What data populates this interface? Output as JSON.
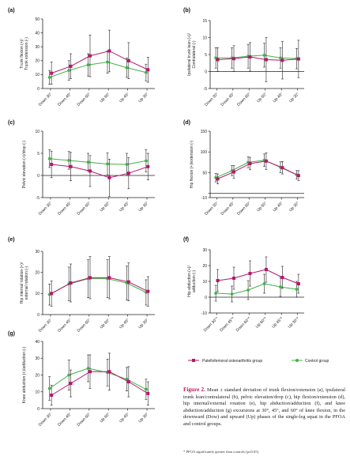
{
  "figure": {
    "caption_label": "Figure 2.",
    "caption_text": "Mean ± standard deviation of trunk flexion/extension (a), ipsilateral trunk lean/contralateral (b), pelvic elevation/drop (c), hip flexion/extension (d), hip internal/external rotation (e), hip abduction/adduction (f), and knee abduction/adduction (g) excursions at 30°, 45°, and 60° of knee flexion, in the downward (Dow) and upward (Up) phases of the single-leg squat in the PFOA and control groups.",
    "footnote": "* PFOA significantly greater than controls (p≤0.05)."
  },
  "legend": {
    "pfoa_label": "Patellofemoral osteoarthritis group",
    "control_label": "Control group",
    "pfoa_color": "#b5176b",
    "control_color": "#43b04a"
  },
  "chart_data": [
    {
      "panel": "(a)",
      "type": "line",
      "ylabel": "Trunk flexion (+)/\nTrunk extension (-)",
      "ylim": [
        0,
        50
      ],
      "yticks": [
        0,
        10,
        20,
        30,
        40,
        50
      ],
      "categories": [
        "Down 30°",
        "Down 45°",
        "Down 60°",
        "Up 60°",
        "Up 45°",
        "Up 30°"
      ],
      "series": [
        {
          "name": "Patellofemoral osteoarthritis group",
          "values": [
            11,
            16,
            23.5,
            27,
            20,
            13.5
          ],
          "err": [
            8,
            9,
            15,
            15,
            13,
            9
          ]
        },
        {
          "name": "Control group",
          "values": [
            8,
            13,
            17,
            19,
            15,
            11.5
          ],
          "err": [
            5,
            7,
            8,
            8,
            7,
            6
          ]
        }
      ]
    },
    {
      "panel": "(b)",
      "type": "line",
      "ylabel": "Ipsilateral trunk lean (+)/\nContralateral (-)",
      "ylim": [
        -5,
        15
      ],
      "yticks": [
        -5,
        0,
        5,
        10,
        15
      ],
      "categories": [
        "Down 30°",
        "Down 45°",
        "Down 60°",
        "Up 60°",
        "Up 45°",
        "Up 30°"
      ],
      "series": [
        {
          "name": "Patellofemoral osteoarthritis group",
          "values": [
            3.5,
            3.8,
            4.3,
            3.5,
            3.3,
            3.7
          ],
          "err": [
            3.5,
            3.8,
            4.2,
            6.5,
            5.5,
            5.5
          ]
        },
        {
          "name": "Control group",
          "values": [
            4,
            4,
            4.5,
            4.8,
            4,
            3.8
          ],
          "err": [
            3,
            3,
            3.5,
            3.5,
            3,
            3
          ]
        }
      ]
    },
    {
      "panel": "(c)",
      "type": "line",
      "ylabel": "Pelvic elevation (+)/drop (-)",
      "ylim": [
        -5,
        10
      ],
      "yticks": [
        -5,
        0,
        5,
        10
      ],
      "categories": [
        "Down 30°",
        "Down 45°",
        "Down 60°",
        "Up 60°",
        "Up 45°",
        "Up 30°"
      ],
      "series": [
        {
          "name": "Patellofemoral osteoarthritis group",
          "values": [
            2.5,
            2,
            1,
            -0.5,
            0.5,
            2
          ],
          "err": [
            3,
            3.2,
            3.5,
            4.2,
            3.5,
            3
          ]
        },
        {
          "name": "Control group",
          "values": [
            3.8,
            3.4,
            3,
            2.6,
            2.5,
            3.3
          ],
          "err": [
            2,
            2,
            2,
            2.5,
            2.5,
            2.5
          ]
        }
      ]
    },
    {
      "panel": "(d)",
      "type": "line",
      "ylabel": "Hip flexion (+)/extension (-)",
      "ylim": [
        -10,
        150
      ],
      "yticks": [
        -10,
        0,
        50,
        100,
        150
      ],
      "yticklabels": [
        "-10",
        "",
        "50",
        "100",
        "150"
      ],
      "categories": [
        "Down 30°",
        "Down 45°",
        "Down 60°",
        "Up 60°",
        "Up 45°",
        "Up 30°"
      ],
      "series": [
        {
          "name": "Patellofemoral osteoarthritis group",
          "values": [
            35,
            52,
            72,
            78,
            62,
            43
          ],
          "err": [
            12,
            15,
            15,
            20,
            15,
            12
          ]
        },
        {
          "name": "Control group",
          "values": [
            38,
            55,
            75,
            80,
            63,
            45
          ],
          "err": [
            10,
            12,
            13,
            15,
            13,
            10
          ]
        }
      ]
    },
    {
      "panel": "(e)",
      "type": "line",
      "ylabel": "Hip internal rotation (+)/\nexternal rotation (-)",
      "ylim": [
        0,
        30
      ],
      "yticks": [
        0,
        10,
        20,
        30
      ],
      "categories": [
        "Down 30°",
        "Down 45°",
        "Down 60°",
        "Up 60°",
        "Up 45°",
        "Up 30°"
      ],
      "series": [
        {
          "name": "Patellofemoral osteoarthritis group",
          "values": [
            10,
            15,
            17.5,
            17.5,
            15.5,
            11
          ],
          "err": [
            6,
            9,
            10,
            10,
            9,
            7
          ]
        },
        {
          "name": "Control group",
          "values": [
            9.5,
            14.5,
            17,
            17,
            15,
            10.5
          ],
          "err": [
            5,
            8,
            9,
            9,
            8,
            6
          ]
        }
      ]
    },
    {
      "panel": "(f)",
      "type": "line",
      "ylabel": "Hip abduction (+)/\nadduction (-)",
      "ylim": [
        -10,
        30
      ],
      "yticks": [
        -10,
        0,
        10,
        20,
        30
      ],
      "categories": [
        "Down 30°*",
        "Down 45°*",
        "Down 60°*",
        "Up 60°*",
        "Up 45°*",
        "Up 30°*"
      ],
      "series": [
        {
          "name": "Patellofemoral osteoarthritis group",
          "values": [
            10.5,
            12,
            15,
            17.5,
            12.5,
            8.5
          ],
          "err": [
            7,
            7,
            8,
            8,
            7,
            6
          ]
        },
        {
          "name": "Control group",
          "values": [
            2.5,
            2,
            4.5,
            8.5,
            6.5,
            5
          ],
          "err": [
            5,
            5,
            6,
            6,
            6,
            5
          ]
        }
      ]
    },
    {
      "panel": "(g)",
      "type": "line",
      "ylabel": "Knee abduction (+)/adduction (-)",
      "ylim": [
        0,
        40
      ],
      "yticks": [
        0,
        10,
        20,
        30,
        40
      ],
      "categories": [
        "Down 30°",
        "Down 45°",
        "Down 60°",
        "Up 60°",
        "Up 45°",
        "Up 30°"
      ],
      "series": [
        {
          "name": "Patellofemoral osteoarthritis group",
          "values": [
            8,
            15,
            22,
            22,
            16,
            9
          ],
          "err": [
            6,
            8,
            10,
            11,
            9,
            7
          ]
        },
        {
          "name": "Control group",
          "values": [
            12,
            20,
            24,
            21.5,
            17.5,
            11.5
          ],
          "err": [
            7,
            9,
            8,
            8,
            7,
            6
          ]
        }
      ]
    }
  ]
}
